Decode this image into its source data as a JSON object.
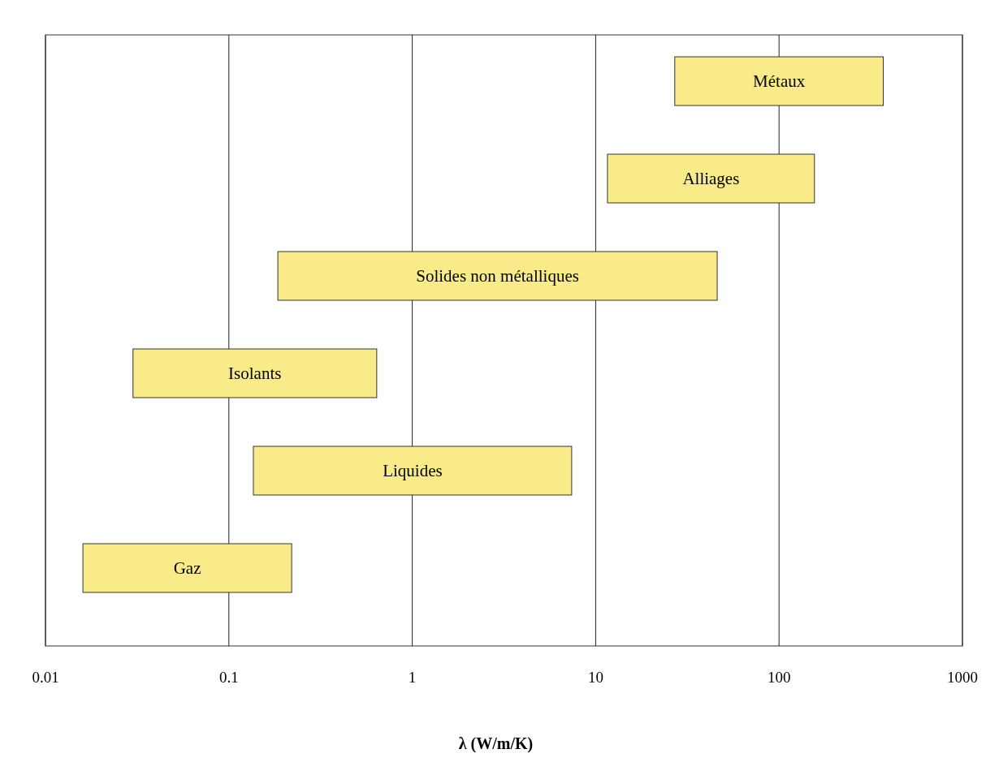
{
  "chart_data": {
    "type": "bar",
    "orientation": "horizontal",
    "xlabel": "λ (W/m/K)",
    "categories": [
      "Métaux",
      "Alliages",
      "Solides non métalliques",
      "Isolants",
      "Liquides",
      "Gaz"
    ],
    "base": [
      27,
      11.6,
      0.185,
      0.03,
      0.136,
      0.016
    ],
    "values": [
      343,
      144.4,
      45.815,
      0.61,
      7.264,
      0.204
    ],
    "color": "#f9eb8a",
    "log": "x",
    "xlim": [
      0.01,
      1000
    ],
    "xticks": [
      0.01,
      0.1,
      1,
      10,
      100,
      1000
    ],
    "grid": "x"
  }
}
